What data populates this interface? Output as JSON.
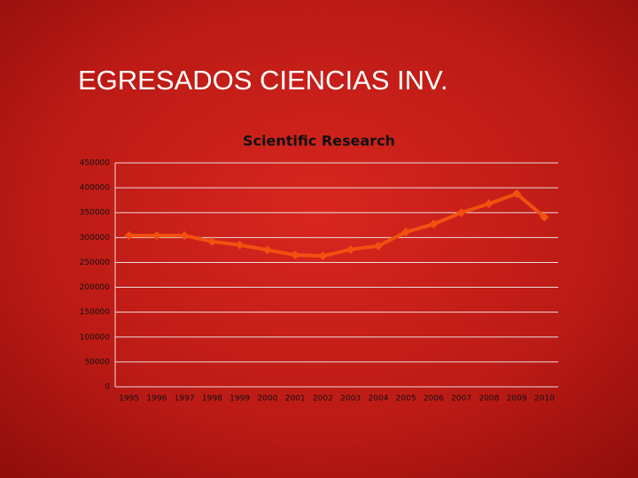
{
  "title": "EGRESADOS  CIENCIAS INV.",
  "chart_data": {
    "type": "line",
    "title": "Scientific Research",
    "categories": [
      "1995",
      "1996",
      "1997",
      "1998",
      "1999",
      "2000",
      "2001",
      "2002",
      "2003",
      "2004",
      "2005",
      "2006",
      "2007",
      "2008",
      "2009",
      "2010"
    ],
    "series": [
      {
        "name": "Scientific Research",
        "color": "#f2500f",
        "values": [
          304000,
          304000,
          304000,
          292000,
          285000,
          275000,
          265000,
          263000,
          276000,
          283000,
          311000,
          327000,
          350000,
          368000,
          388000,
          341000
        ]
      }
    ],
    "ylim": [
      0,
      450000
    ],
    "yticks": [
      0,
      50000,
      100000,
      150000,
      200000,
      250000,
      300000,
      350000,
      400000,
      450000
    ],
    "grid": true
  }
}
